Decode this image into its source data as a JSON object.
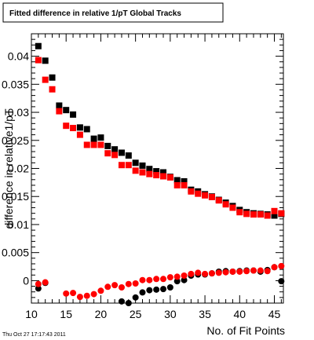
{
  "chart_data": {
    "type": "scatter",
    "title": "Fitted difference in relative 1/pT  Global Tracks",
    "xlabel": "No. of Fit Points",
    "ylabel": "difference in relative1/pT",
    "xlim": [
      10,
      46.3
    ],
    "ylim": [
      -0.004,
      0.044
    ],
    "x_ticks": [
      "10",
      "15",
      "20",
      "25",
      "30",
      "35",
      "40",
      "45"
    ],
    "y_ticks": [
      "0",
      "0.005",
      "0.01",
      "0.015",
      "0.02",
      "0.025",
      "0.03",
      "0.035",
      "0.04"
    ],
    "grid": false,
    "timestamp": "Thu Oct 27 17:17:43 2011",
    "series": [
      {
        "marker": "square",
        "color": "#000000",
        "points": [
          [
            11,
            0.0418
          ],
          [
            12,
            0.0392
          ],
          [
            13,
            0.0362
          ],
          [
            14,
            0.0312
          ],
          [
            15,
            0.0304
          ],
          [
            16,
            0.0296
          ],
          [
            17,
            0.0273
          ],
          [
            18,
            0.027
          ],
          [
            19,
            0.0253
          ],
          [
            20,
            0.0255
          ],
          [
            21,
            0.024
          ],
          [
            22,
            0.0234
          ],
          [
            23,
            0.0228
          ],
          [
            24,
            0.0223
          ],
          [
            25,
            0.021
          ],
          [
            26,
            0.0205
          ],
          [
            27,
            0.0199
          ],
          [
            28,
            0.0195
          ],
          [
            29,
            0.0193
          ],
          [
            30,
            0.0185
          ],
          [
            31,
            0.0179
          ],
          [
            32,
            0.0177
          ],
          [
            33,
            0.0162
          ],
          [
            34,
            0.0159
          ],
          [
            35,
            0.0154
          ],
          [
            36,
            0.015
          ],
          [
            37,
            0.0144
          ],
          [
            38,
            0.0139
          ],
          [
            39,
            0.0133
          ],
          [
            40,
            0.0126
          ],
          [
            41,
            0.0122
          ],
          [
            42,
            0.012
          ],
          [
            43,
            0.0119
          ],
          [
            44,
            0.0118
          ],
          [
            45,
            0.0116
          ],
          [
            46,
            0.0119
          ]
        ]
      },
      {
        "marker": "square",
        "color": "#ff0000",
        "points": [
          [
            11,
            0.0393
          ],
          [
            12,
            0.0358
          ],
          [
            13,
            0.0341
          ],
          [
            14,
            0.0302
          ],
          [
            15,
            0.0276
          ],
          [
            16,
            0.0272
          ],
          [
            17,
            0.026
          ],
          [
            18,
            0.0242
          ],
          [
            19,
            0.0242
          ],
          [
            20,
            0.0242
          ],
          [
            21,
            0.0227
          ],
          [
            22,
            0.0224
          ],
          [
            23,
            0.0206
          ],
          [
            24,
            0.0206
          ],
          [
            25,
            0.0196
          ],
          [
            26,
            0.0193
          ],
          [
            27,
            0.019
          ],
          [
            28,
            0.0188
          ],
          [
            29,
            0.0186
          ],
          [
            30,
            0.0184
          ],
          [
            31,
            0.017
          ],
          [
            32,
            0.017
          ],
          [
            33,
            0.0159
          ],
          [
            34,
            0.0155
          ],
          [
            35,
            0.0152
          ],
          [
            36,
            0.0149
          ],
          [
            37,
            0.0143
          ],
          [
            38,
            0.0136
          ],
          [
            39,
            0.013
          ],
          [
            40,
            0.0122
          ],
          [
            41,
            0.0119
          ],
          [
            42,
            0.0118
          ],
          [
            43,
            0.0118
          ],
          [
            44,
            0.0116
          ],
          [
            45,
            0.0124
          ],
          [
            46,
            0.012
          ]
        ]
      },
      {
        "marker": "circle",
        "color": "#000000",
        "points": [
          [
            11,
            -0.0014
          ],
          [
            12,
            -0.0004
          ],
          [
            23,
            -0.0037
          ],
          [
            24,
            -0.004
          ],
          [
            25,
            -0.003
          ],
          [
            26,
            -0.0021
          ],
          [
            27,
            -0.0017
          ],
          [
            28,
            -0.0016
          ],
          [
            29,
            -0.0015
          ],
          [
            30,
            -0.0012
          ],
          [
            31,
            -0.0001
          ],
          [
            32,
            0.0001
          ],
          [
            33,
            0.0009
          ],
          [
            34,
            0.0011
          ],
          [
            35,
            0.0011
          ],
          [
            36,
            0.0013
          ],
          [
            37,
            0.0016
          ],
          [
            38,
            0.0017
          ],
          [
            39,
            0.0016
          ],
          [
            40,
            0.0017
          ],
          [
            41,
            0.0018
          ],
          [
            42,
            0.0018
          ],
          [
            43,
            0.0016
          ],
          [
            44,
            0.0019
          ],
          [
            45,
            0.0024
          ],
          [
            46,
            -0.0001
          ]
        ]
      },
      {
        "marker": "circle",
        "color": "#ff0000",
        "points": [
          [
            11,
            -0.0006
          ],
          [
            12,
            -0.0003
          ],
          [
            15,
            -0.0023
          ],
          [
            16,
            -0.0022
          ],
          [
            17,
            -0.0029
          ],
          [
            18,
            -0.0027
          ],
          [
            19,
            -0.0024
          ],
          [
            20,
            -0.0018
          ],
          [
            21,
            -0.0011
          ],
          [
            22,
            -0.0008
          ],
          [
            23,
            -0.0012
          ],
          [
            24,
            -0.0006
          ],
          [
            25,
            -0.0005
          ],
          [
            26,
            0.0001
          ],
          [
            27,
            0.0001
          ],
          [
            28,
            0.0003
          ],
          [
            29,
            0.0003
          ],
          [
            30,
            0.0006
          ],
          [
            31,
            0.0007
          ],
          [
            32,
            0.0009
          ],
          [
            33,
            0.0012
          ],
          [
            34,
            0.0014
          ],
          [
            35,
            0.0012
          ],
          [
            36,
            0.0013
          ],
          [
            37,
            0.0014
          ],
          [
            38,
            0.0015
          ],
          [
            39,
            0.0016
          ],
          [
            40,
            0.0016
          ],
          [
            41,
            0.0017
          ],
          [
            42,
            0.0018
          ],
          [
            43,
            0.0018
          ],
          [
            44,
            0.0017
          ],
          [
            45,
            0.0024
          ],
          [
            46,
            0.0026
          ]
        ]
      }
    ]
  }
}
